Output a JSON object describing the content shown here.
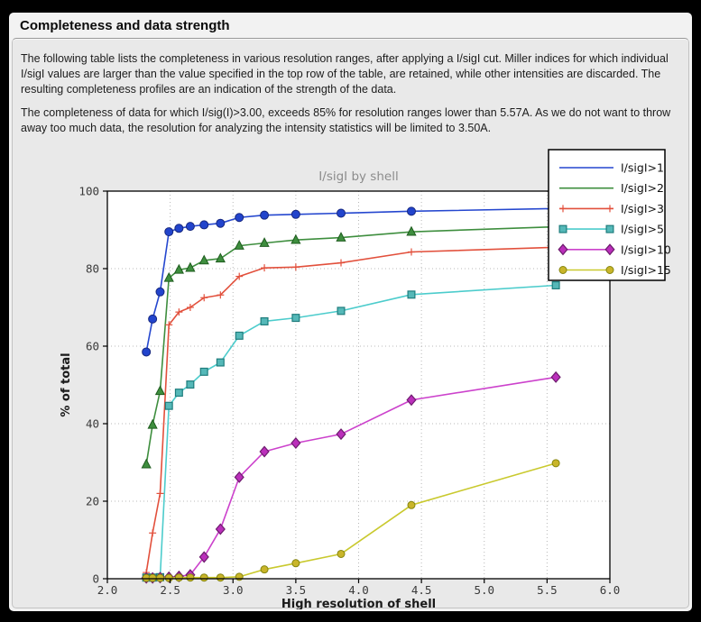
{
  "panel": {
    "title": "Completeness and data strength",
    "paragraph1": "The following table lists the completeness in various resolution ranges, after applying a I/sigI cut. Miller indices for which individual I/sigI values are larger than the value specified in the top row of the table, are retained, while other intensities are discarded. The resulting completeness profiles are an indication of the strength of the data.",
    "paragraph2": "The completeness of data for which I/sig(I)>3.00, exceeds  85% for resolution ranges lower than 5.57A. As we do not want to throw away too much data, the resolution for analyzing the intensity statistics will be limited to 3.50A."
  },
  "colors": {
    "page_bg": "#000000",
    "panel_bg": "#f2f2f2",
    "inset_bg": "#e9e9e9",
    "plot_bg": "#ffffff",
    "grid": "#b8b8b8",
    "axis": "#000000",
    "tick_label": "#3a3a3a",
    "axis_label": "#1a1a1a",
    "chart_title": "#8c8c8c",
    "legend_bg": "#ffffff",
    "legend_border": "#000000"
  },
  "chart_data": {
    "type": "line",
    "title": "I/sigI by shell",
    "xlabel": "High resolution of shell",
    "ylabel": "% of total",
    "xlim": [
      2.0,
      6.0
    ],
    "ylim": [
      0,
      100
    ],
    "xticks": [
      2.0,
      2.5,
      3.0,
      3.5,
      4.0,
      4.5,
      5.0,
      5.5,
      6.0
    ],
    "xtick_labels": [
      "2.0",
      "2.5",
      "3.0",
      "3.5",
      "4.0",
      "4.5",
      "5.0",
      "5.5",
      "6.0"
    ],
    "yticks": [
      0,
      20,
      40,
      60,
      80,
      100
    ],
    "ytick_labels": [
      "0",
      "20",
      "40",
      "60",
      "80",
      "100"
    ],
    "grid": "dotted",
    "legend_position": "top-right",
    "x": [
      2.31,
      2.36,
      2.42,
      2.49,
      2.57,
      2.66,
      2.77,
      2.9,
      3.05,
      3.25,
      3.5,
      3.86,
      4.42,
      5.57
    ],
    "series": [
      {
        "name": "I/sigI>1",
        "color": "#2547cf",
        "marker": "circle",
        "marker_fill": "#2244cc",
        "marker_edge": "#16277f",
        "marker_size": 4.5,
        "legend_marker": false,
        "values": [
          58.5,
          67.0,
          74.0,
          89.5,
          90.4,
          90.9,
          91.3,
          91.7,
          93.2,
          93.8,
          94.0,
          94.3,
          94.8,
          95.5
        ]
      },
      {
        "name": "I/sigI>2",
        "color": "#3e8e3e",
        "marker": "triangle",
        "marker_fill": "#3e8e3e",
        "marker_edge": "#1e5c1e",
        "marker_size": 5,
        "legend_marker": false,
        "values": [
          29.5,
          39.7,
          48.4,
          77.6,
          79.7,
          80.2,
          82.1,
          82.6,
          85.9,
          86.6,
          87.4,
          88.0,
          89.5,
          90.8
        ]
      },
      {
        "name": "I/sigI>3",
        "color": "#e2503c",
        "marker": "plus",
        "marker_fill": "#e2503c",
        "marker_edge": "#e2503c",
        "marker_size": 4,
        "legend_marker": true,
        "values": [
          1.6,
          11.8,
          22.0,
          65.5,
          68.8,
          70.0,
          72.5,
          73.2,
          78.0,
          80.2,
          80.4,
          81.5,
          84.3,
          85.5
        ]
      },
      {
        "name": "I/sigI>5",
        "color": "#4ccccc",
        "marker": "square",
        "marker_fill": "#55b8b8",
        "marker_edge": "#1f7d7d",
        "marker_size": 3.9,
        "legend_marker": true,
        "values": [
          0.3,
          0.3,
          0.4,
          44.6,
          48.0,
          50.1,
          53.4,
          55.8,
          62.7,
          66.4,
          67.3,
          69.1,
          73.3,
          75.7
        ]
      },
      {
        "name": "I/sigI>10",
        "color": "#cc42cc",
        "marker": "diamond",
        "marker_fill": "#bb2fbb",
        "marker_edge": "#6e1c6e",
        "marker_size": 5,
        "legend_marker": true,
        "values": [
          0.2,
          0.2,
          0.3,
          0.4,
          0.6,
          1.0,
          5.6,
          12.8,
          26.2,
          32.8,
          35.0,
          37.3,
          46.1,
          52.0
        ]
      },
      {
        "name": "I/sigI>15",
        "color": "#c9c92e",
        "marker": "circle",
        "marker_fill": "#c9b52a",
        "marker_edge": "#85850f",
        "marker_size": 4,
        "legend_marker": true,
        "values": [
          0.2,
          0.2,
          0.2,
          0.2,
          0.3,
          0.3,
          0.3,
          0.3,
          0.5,
          2.4,
          4.0,
          6.4,
          19.0,
          29.8
        ]
      }
    ]
  }
}
